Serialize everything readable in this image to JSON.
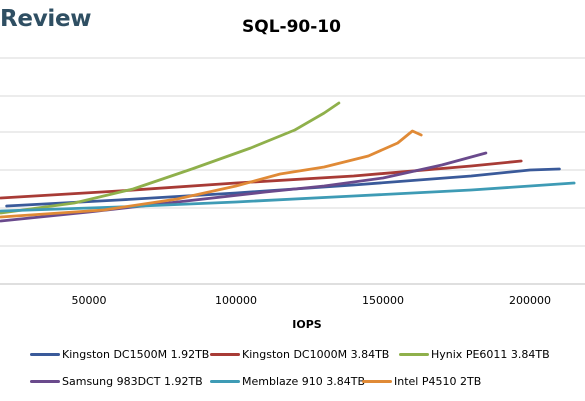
{
  "brand": {
    "logo_text": "Review"
  },
  "chart_data": {
    "type": "line",
    "title": "SQL-90-10",
    "xlabel": "IOPS",
    "ylabel": "",
    "xlim": [
      20000,
      215000
    ],
    "x_ticks": [
      "50000",
      "100000",
      "150000",
      "200000"
    ],
    "x_tick_values": [
      50000,
      100000,
      150000,
      200000
    ],
    "grid": true,
    "legend_position": "bottom",
    "series": [
      {
        "name": "Kingston DC1500M 1.92TB",
        "color": "#3a5a9a",
        "points": [
          [
            22000,
            206
          ],
          [
            60000,
            200
          ],
          [
            100000,
            193
          ],
          [
            140000,
            185
          ],
          [
            180000,
            176
          ],
          [
            200000,
            170
          ],
          [
            210000,
            169
          ]
        ]
      },
      {
        "name": "Kingston DC1000M 3.84TB",
        "color": "#a83b36",
        "points": [
          [
            20000,
            198
          ],
          [
            60000,
            191
          ],
          [
            100000,
            183
          ],
          [
            140000,
            176
          ],
          [
            180000,
            166
          ],
          [
            197000,
            161
          ]
        ]
      },
      {
        "name": "Hynix PE6011 3.84TB",
        "color": "#8fb04b",
        "points": [
          [
            20000,
            213
          ],
          [
            45000,
            203
          ],
          [
            65000,
            189
          ],
          [
            85000,
            169
          ],
          [
            105000,
            148
          ],
          [
            120000,
            130
          ],
          [
            130000,
            113
          ],
          [
            135000,
            103
          ]
        ]
      },
      {
        "name": "Samsung 983DCT 1.92TB",
        "color": "#6a4a8c",
        "points": [
          [
            20000,
            221
          ],
          [
            50000,
            212
          ],
          [
            80000,
            202
          ],
          [
            110000,
            192
          ],
          [
            130000,
            186
          ],
          [
            150000,
            178
          ],
          [
            170000,
            165
          ],
          [
            185000,
            153
          ]
        ]
      },
      {
        "name": "Memblaze 910 3.84TB",
        "color": "#3e9bb5",
        "points": [
          [
            20000,
            211
          ],
          [
            60000,
            207
          ],
          [
            100000,
            202
          ],
          [
            140000,
            196
          ],
          [
            180000,
            190
          ],
          [
            215000,
            183
          ]
        ]
      },
      {
        "name": "Intel P4510 2TB",
        "color": "#e08a36",
        "points": [
          [
            20000,
            217
          ],
          [
            55000,
            210
          ],
          [
            80000,
            199
          ],
          [
            100000,
            186
          ],
          [
            115000,
            174
          ],
          [
            130000,
            167
          ],
          [
            145000,
            156
          ],
          [
            155000,
            143
          ],
          [
            160000,
            131
          ],
          [
            163000,
            135
          ]
        ]
      }
    ]
  }
}
